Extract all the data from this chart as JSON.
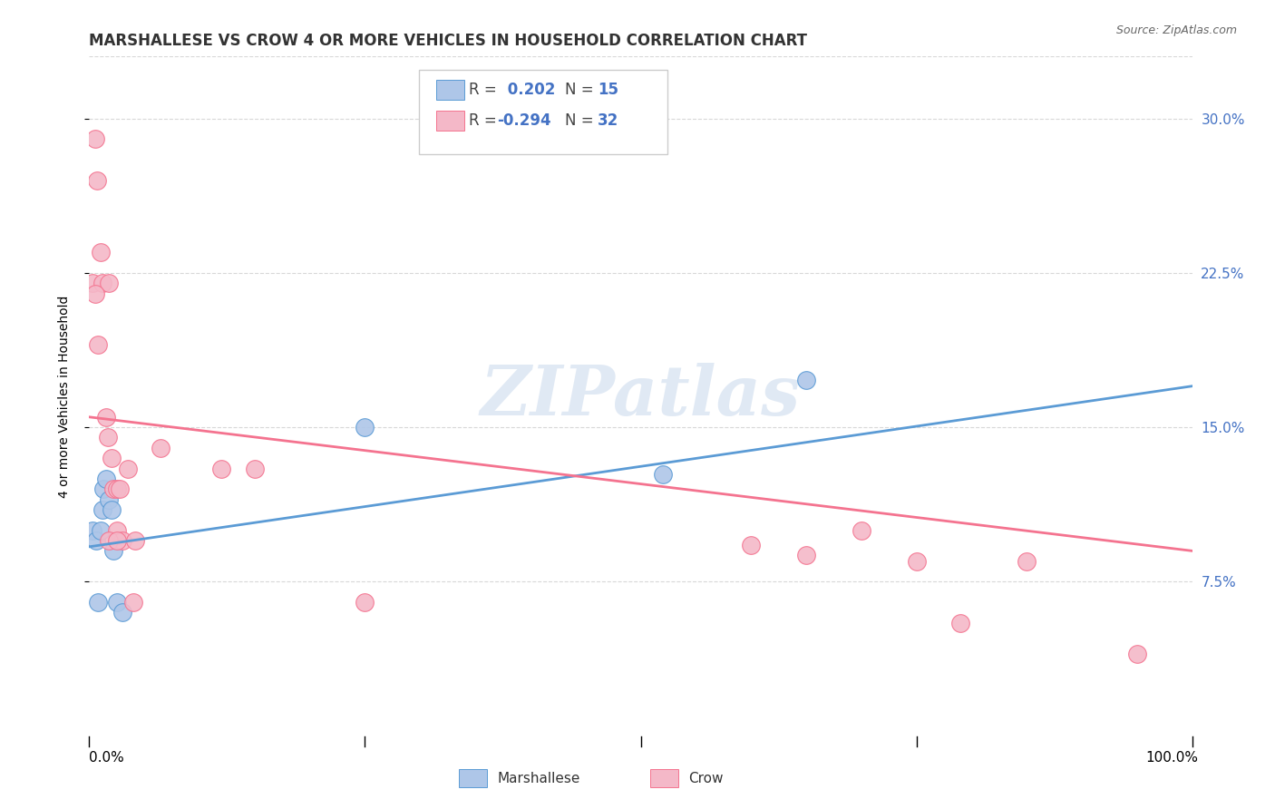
{
  "title": "MARSHALLESE VS CROW 4 OR MORE VEHICLES IN HOUSEHOLD CORRELATION CHART",
  "source": "Source: ZipAtlas.com",
  "ylabel": "4 or more Vehicles in Household",
  "yticks": [
    "7.5%",
    "15.0%",
    "22.5%",
    "30.0%"
  ],
  "ytick_vals": [
    0.075,
    0.15,
    0.225,
    0.3
  ],
  "xlim": [
    0,
    1
  ],
  "ylim": [
    0.0,
    0.33
  ],
  "watermark": "ZIPatlas",
  "blue_r": "0.202",
  "blue_n": "15",
  "pink_r": "-0.294",
  "pink_n": "32",
  "blue_scatter_x": [
    0.003,
    0.006,
    0.008,
    0.01,
    0.012,
    0.013,
    0.015,
    0.018,
    0.02,
    0.022,
    0.025,
    0.03,
    0.25,
    0.52,
    0.65
  ],
  "blue_scatter_y": [
    0.1,
    0.095,
    0.065,
    0.1,
    0.11,
    0.12,
    0.125,
    0.115,
    0.11,
    0.09,
    0.065,
    0.06,
    0.15,
    0.127,
    0.173
  ],
  "pink_scatter_x": [
    0.003,
    0.005,
    0.007,
    0.01,
    0.012,
    0.015,
    0.017,
    0.018,
    0.02,
    0.022,
    0.025,
    0.025,
    0.028,
    0.03,
    0.035,
    0.04,
    0.042,
    0.065,
    0.12,
    0.15,
    0.25,
    0.6,
    0.65,
    0.7,
    0.75,
    0.79,
    0.85,
    0.95,
    0.005,
    0.008,
    0.018,
    0.025
  ],
  "pink_scatter_y": [
    0.22,
    0.29,
    0.27,
    0.235,
    0.22,
    0.155,
    0.145,
    0.22,
    0.135,
    0.12,
    0.12,
    0.1,
    0.12,
    0.095,
    0.13,
    0.065,
    0.095,
    0.14,
    0.13,
    0.13,
    0.065,
    0.093,
    0.088,
    0.1,
    0.085,
    0.055,
    0.085,
    0.04,
    0.215,
    0.19,
    0.095,
    0.095
  ],
  "blue_line_x": [
    0.0,
    1.0
  ],
  "blue_line_y": [
    0.092,
    0.17
  ],
  "pink_line_x": [
    0.0,
    1.0
  ],
  "pink_line_y": [
    0.155,
    0.09
  ],
  "blue_color": "#aec6e8",
  "blue_line_color": "#5b9bd5",
  "pink_color": "#f4b8c8",
  "pink_line_color": "#f4738f",
  "background_color": "#ffffff",
  "grid_color": "#d8d8d8",
  "title_fontsize": 12,
  "label_fontsize": 10,
  "tick_fontsize": 11
}
